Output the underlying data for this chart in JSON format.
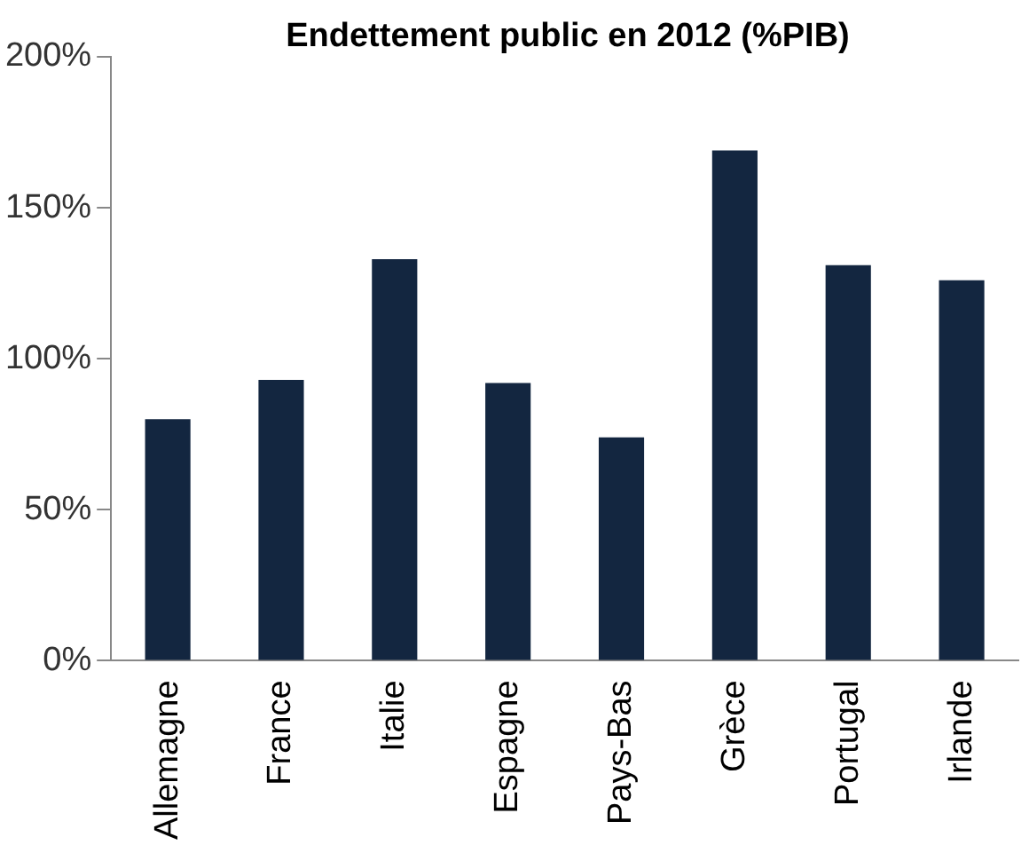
{
  "chart_data": {
    "type": "bar",
    "title": "Endettement public en 2012 (%PIB)",
    "categories": [
      "Allemagne",
      "France",
      "Italie",
      "Espagne",
      "Pays-Bas",
      "Grèce",
      "Portugal",
      "Irlande"
    ],
    "values": [
      80,
      93,
      133,
      92,
      74,
      169,
      131,
      126
    ],
    "color": "#132640",
    "ylim": [
      0,
      200
    ],
    "yticks": [
      {
        "value": 0,
        "label": "0%"
      },
      {
        "value": 50,
        "label": "50%"
      },
      {
        "value": 100,
        "label": "100%"
      },
      {
        "value": 150,
        "label": "150%"
      },
      {
        "value": 200,
        "label": "200%"
      }
    ],
    "grid": false,
    "legend": false
  }
}
